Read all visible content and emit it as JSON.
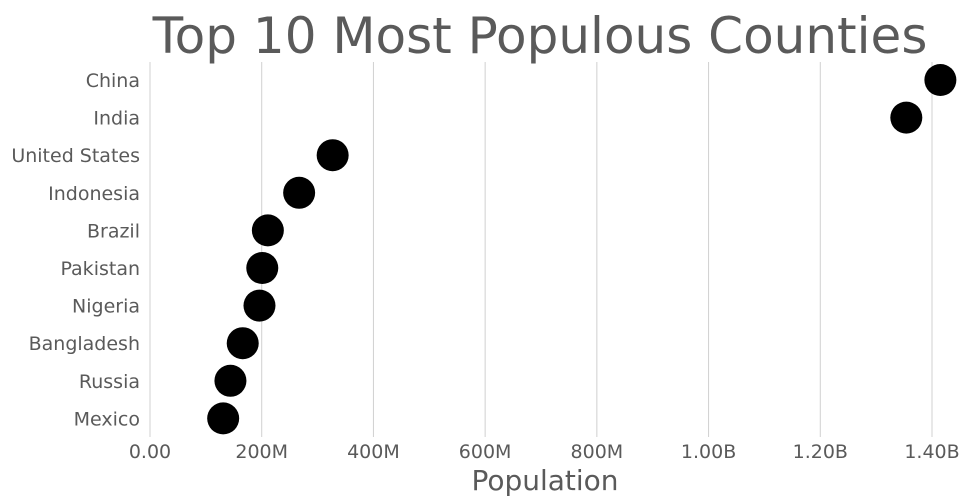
{
  "chart_data": {
    "type": "scatter",
    "title": "Top 10 Most Populous Counties",
    "xlabel": "Population",
    "ylabel": "",
    "xlim": [
      0,
      1400000000
    ],
    "x_ticks": [
      0,
      200000000,
      400000000,
      600000000,
      800000000,
      1000000000,
      1200000000,
      1400000000
    ],
    "x_tick_labels": [
      "0.00",
      "200M",
      "400M",
      "600M",
      "800M",
      "1.00B",
      "1.20B",
      "1.40B"
    ],
    "grid": true,
    "marker_color": "#000000",
    "categories": [
      "China",
      "India",
      "United States",
      "Indonesia",
      "Brazil",
      "Pakistan",
      "Nigeria",
      "Bangladesh",
      "Russia",
      "Mexico"
    ],
    "values": [
      1415000000,
      1354000000,
      327000000,
      267000000,
      211000000,
      201000000,
      196000000,
      166000000,
      144000000,
      131000000
    ]
  }
}
